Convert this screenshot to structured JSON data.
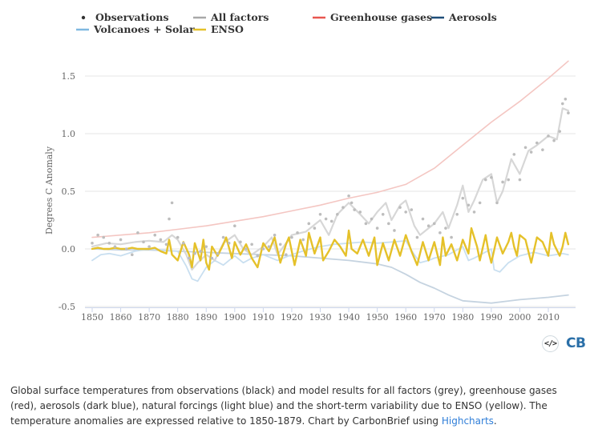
{
  "legend": [
    {
      "name": "Observations",
      "symbol": "dot",
      "color": "#333333"
    },
    {
      "name": "All factors",
      "symbol": "line",
      "color": "#a8a8a8"
    },
    {
      "name": "Greenhouse gases",
      "symbol": "line",
      "color": "#e8564f"
    },
    {
      "name": "Aerosols",
      "symbol": "line",
      "color": "#1f4e79"
    },
    {
      "name": "Volcanoes + Solar",
      "symbol": "line",
      "color": "#7fb8e0"
    },
    {
      "name": "ENSO",
      "symbol": "line",
      "color": "#e5c12a"
    }
  ],
  "chart_data": {
    "type": "line",
    "ylabel": "Degrees C Anomaly",
    "xlabel": "",
    "xlim": [
      1848,
      2018
    ],
    "ylim": [
      -0.5,
      1.6
    ],
    "x_ticks": [
      1850,
      1860,
      1870,
      1880,
      1890,
      1900,
      1910,
      1920,
      1930,
      1940,
      1950,
      1960,
      1970,
      1980,
      1990,
      2000,
      2010
    ],
    "y_ticks": [
      -0.5,
      0.0,
      0.5,
      1.0,
      1.5
    ],
    "y_tick_labels": [
      "-0.5",
      "0.0",
      "0.5",
      "1.0",
      "1.5"
    ],
    "grid": "horizontal",
    "legend_position": "top",
    "series": [
      {
        "name": "Greenhouse gases",
        "color": "#f4c6c2",
        "x": [
          1850,
          1860,
          1870,
          1880,
          1890,
          1900,
          1910,
          1920,
          1930,
          1940,
          1950,
          1960,
          1970,
          1980,
          1990,
          2000,
          2010,
          2017
        ],
        "values": [
          0.1,
          0.12,
          0.14,
          0.17,
          0.2,
          0.24,
          0.28,
          0.33,
          0.38,
          0.44,
          0.49,
          0.56,
          0.7,
          0.9,
          1.1,
          1.28,
          1.48,
          1.63
        ]
      },
      {
        "name": "Aerosols",
        "color": "#c5d3e0",
        "x": [
          1850,
          1860,
          1870,
          1880,
          1890,
          1900,
          1910,
          1920,
          1930,
          1940,
          1950,
          1955,
          1960,
          1965,
          1970,
          1975,
          1980,
          1990,
          2000,
          2010,
          2017
        ],
        "values": [
          0.0,
          -0.01,
          -0.01,
          -0.02,
          -0.03,
          -0.04,
          -0.05,
          -0.06,
          -0.08,
          -0.1,
          -0.13,
          -0.16,
          -0.22,
          -0.29,
          -0.34,
          -0.4,
          -0.45,
          -0.47,
          -0.44,
          -0.42,
          -0.4
        ]
      },
      {
        "name": "Volcanoes + Solar",
        "color": "#c9dff0",
        "x": [
          1850,
          1853,
          1856,
          1860,
          1865,
          1870,
          1875,
          1880,
          1883,
          1885,
          1887,
          1890,
          1893,
          1896,
          1900,
          1903,
          1906,
          1910,
          1915,
          1920,
          1925,
          1930,
          1935,
          1940,
          1945,
          1950,
          1955,
          1960,
          1963,
          1965,
          1968,
          1970,
          1975,
          1980,
          1982,
          1984,
          1987,
          1990,
          1991,
          1993,
          1996,
          2000,
          2005,
          2010,
          2015,
          2017
        ],
        "values": [
          -0.1,
          -0.05,
          -0.04,
          -0.06,
          -0.02,
          0.0,
          -0.01,
          -0.02,
          -0.15,
          -0.26,
          -0.28,
          -0.16,
          -0.1,
          -0.14,
          -0.06,
          -0.12,
          -0.08,
          -0.05,
          -0.1,
          -0.05,
          -0.01,
          0.02,
          0.04,
          0.05,
          0.06,
          0.05,
          0.06,
          0.07,
          -0.05,
          -0.12,
          -0.1,
          -0.08,
          -0.05,
          0.02,
          -0.1,
          -0.08,
          -0.04,
          0.0,
          -0.18,
          -0.2,
          -0.12,
          -0.06,
          -0.03,
          -0.06,
          -0.04,
          -0.05
        ]
      },
      {
        "name": "All factors",
        "color": "#d7d7d7",
        "x": [
          1850,
          1855,
          1860,
          1865,
          1870,
          1875,
          1878,
          1880,
          1883,
          1885,
          1887,
          1890,
          1893,
          1896,
          1900,
          1903,
          1906,
          1910,
          1913,
          1915,
          1918,
          1920,
          1925,
          1930,
          1933,
          1936,
          1940,
          1944,
          1947,
          1950,
          1953,
          1955,
          1958,
          1960,
          1963,
          1965,
          1968,
          1970,
          1973,
          1975,
          1978,
          1980,
          1982,
          1984,
          1987,
          1990,
          1992,
          1994,
          1997,
          2000,
          2003,
          2006,
          2010,
          2013,
          2015,
          2017
        ],
        "values": [
          0.02,
          0.05,
          0.04,
          0.06,
          0.07,
          0.06,
          0.12,
          0.08,
          -0.05,
          -0.18,
          -0.12,
          -0.05,
          -0.1,
          0.05,
          0.12,
          0.0,
          -0.05,
          0.02,
          0.1,
          -0.05,
          0.05,
          0.12,
          0.15,
          0.25,
          0.12,
          0.3,
          0.4,
          0.3,
          0.22,
          0.32,
          0.4,
          0.25,
          0.38,
          0.42,
          0.2,
          0.12,
          0.18,
          0.22,
          0.32,
          0.18,
          0.38,
          0.55,
          0.32,
          0.42,
          0.6,
          0.65,
          0.4,
          0.5,
          0.78,
          0.65,
          0.85,
          0.9,
          0.98,
          0.95,
          1.22,
          1.2
        ]
      },
      {
        "name": "ENSO",
        "color": "#e5c12a",
        "x": [
          1850,
          1852,
          1854,
          1856,
          1858,
          1860,
          1862,
          1864,
          1866,
          1868,
          1870,
          1872,
          1874,
          1876,
          1877,
          1878,
          1880,
          1882,
          1884,
          1885,
          1886,
          1888,
          1889,
          1890,
          1891,
          1892,
          1894,
          1896,
          1897,
          1899,
          1900,
          1902,
          1904,
          1906,
          1908,
          1910,
          1912,
          1914,
          1916,
          1918,
          1919,
          1921,
          1923,
          1925,
          1926,
          1928,
          1930,
          1931,
          1933,
          1935,
          1937,
          1939,
          1940,
          1941,
          1943,
          1945,
          1947,
          1949,
          1950,
          1952,
          1954,
          1956,
          1958,
          1960,
          1962,
          1964,
          1966,
          1968,
          1970,
          1972,
          1973,
          1974,
          1976,
          1978,
          1980,
          1982,
          1983,
          1985,
          1986,
          1988,
          1989,
          1990,
          1992,
          1994,
          1996,
          1997,
          1998,
          1999,
          2000,
          2002,
          2004,
          2006,
          2008,
          2010,
          2011,
          2012,
          2014,
          2015,
          2016,
          2017
        ],
        "values": [
          0.0,
          0.01,
          0.0,
          0.0,
          0.01,
          0.0,
          0.0,
          0.01,
          0.0,
          0.0,
          0.0,
          0.01,
          -0.02,
          -0.04,
          0.08,
          -0.05,
          -0.1,
          0.06,
          -0.05,
          -0.16,
          0.05,
          -0.1,
          0.08,
          -0.12,
          -0.18,
          0.02,
          -0.06,
          0.04,
          0.1,
          -0.08,
          0.06,
          -0.05,
          0.04,
          -0.08,
          -0.16,
          0.05,
          -0.02,
          0.1,
          -0.12,
          0.04,
          0.1,
          -0.14,
          0.08,
          -0.06,
          0.14,
          -0.04,
          0.1,
          -0.1,
          -0.02,
          0.08,
          0.02,
          -0.06,
          0.16,
          0.0,
          -0.04,
          0.08,
          -0.06,
          0.1,
          -0.14,
          0.05,
          -0.1,
          0.08,
          -0.06,
          0.12,
          -0.02,
          -0.14,
          0.06,
          -0.1,
          0.06,
          -0.14,
          0.1,
          -0.06,
          0.04,
          -0.1,
          0.08,
          -0.04,
          0.18,
          0.02,
          -0.1,
          0.12,
          -0.02,
          -0.12,
          0.1,
          -0.04,
          0.06,
          0.14,
          0.02,
          -0.06,
          0.12,
          0.08,
          -0.12,
          0.1,
          0.06,
          -0.06,
          0.14,
          0.04,
          -0.06,
          0.02,
          0.14,
          0.04
        ]
      },
      {
        "name": "Observations",
        "color": "#bdbdbd",
        "type": "scatter",
        "x": [
          1850,
          1852,
          1854,
          1856,
          1858,
          1860,
          1862,
          1864,
          1866,
          1868,
          1870,
          1872,
          1874,
          1876,
          1877,
          1878,
          1880,
          1882,
          1884,
          1886,
          1888,
          1890,
          1892,
          1894,
          1896,
          1898,
          1900,
          1902,
          1904,
          1906,
          1908,
          1910,
          1912,
          1914,
          1916,
          1918,
          1920,
          1922,
          1924,
          1926,
          1928,
          1930,
          1932,
          1934,
          1936,
          1938,
          1940,
          1941,
          1942,
          1944,
          1946,
          1948,
          1950,
          1952,
          1954,
          1956,
          1958,
          1960,
          1962,
          1964,
          1966,
          1968,
          1970,
          1972,
          1974,
          1976,
          1978,
          1980,
          1982,
          1984,
          1986,
          1988,
          1990,
          1992,
          1994,
          1996,
          1998,
          2000,
          2002,
          2004,
          2006,
          2008,
          2010,
          2012,
          2014,
          2015,
          2016,
          2017
        ],
        "values": [
          0.05,
          0.12,
          0.1,
          0.05,
          0.02,
          0.08,
          0.0,
          -0.05,
          0.14,
          0.06,
          0.02,
          0.12,
          0.08,
          0.04,
          0.26,
          0.4,
          0.1,
          0.05,
          -0.08,
          -0.04,
          -0.02,
          0.02,
          -0.08,
          -0.04,
          0.1,
          0.05,
          0.2,
          0.06,
          0.0,
          0.04,
          -0.06,
          0.0,
          0.02,
          0.12,
          0.04,
          -0.05,
          0.1,
          0.14,
          0.08,
          0.22,
          0.18,
          0.3,
          0.26,
          0.24,
          0.3,
          0.36,
          0.46,
          0.4,
          0.34,
          0.32,
          0.22,
          0.26,
          0.18,
          0.3,
          0.22,
          0.16,
          0.36,
          0.32,
          0.34,
          0.1,
          0.26,
          0.2,
          0.22,
          0.14,
          0.18,
          0.1,
          0.3,
          0.44,
          0.38,
          0.32,
          0.4,
          0.6,
          0.62,
          0.4,
          0.58,
          0.6,
          0.82,
          0.6,
          0.88,
          0.84,
          0.92,
          0.86,
          0.98,
          0.94,
          1.02,
          1.26,
          1.3,
          1.18
        ]
      }
    ]
  },
  "branding": {
    "embed_icon": "</>",
    "logo": "CB"
  },
  "caption": {
    "text": "Global surface temperatures from observations (black) and model results for all factors (grey), greenhouse gases (red), aerosols (dark blue), natural forcings (light blue) and the short-term variability due to ENSO (yellow). The temperature anomalies are expressed relative to 1850-1879. Chart by CarbonBrief using ",
    "link_text": "Highcharts",
    "end": "."
  }
}
